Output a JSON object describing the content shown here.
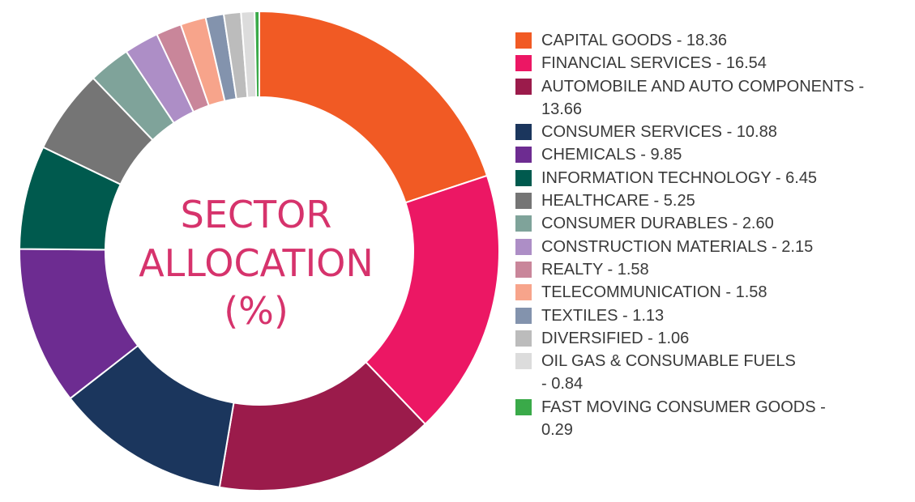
{
  "chart_data": {
    "type": "pie",
    "variant": "donut",
    "title": [
      "SECTOR",
      "ALLOCATION",
      "(%)"
    ],
    "legend_position": "right",
    "series": [
      {
        "name": "CAPITAL GOODS",
        "value": 18.36,
        "value_text": "18.36",
        "color": "#f15a24"
      },
      {
        "name": "FINANCIAL SERVICES",
        "value": 16.54,
        "value_text": "16.54",
        "color": "#ec1764"
      },
      {
        "name": "AUTOMOBILE AND AUTO COMPONENTS",
        "value": 13.66,
        "value_text": "13.66",
        "color": "#9b1b4b"
      },
      {
        "name": "CONSUMER SERVICES",
        "value": 10.88,
        "value_text": "10.88",
        "color": "#1b365d"
      },
      {
        "name": "CHEMICALS",
        "value": 9.85,
        "value_text": "9.85",
        "color": "#6d2c91"
      },
      {
        "name": "INFORMATION TECHNOLOGY",
        "value": 6.45,
        "value_text": "6.45",
        "color": "#005a4e"
      },
      {
        "name": "HEALTHCARE",
        "value": 5.25,
        "value_text": "5.25",
        "color": "#757575"
      },
      {
        "name": "CONSUMER DURABLES",
        "value": 2.6,
        "value_text": "2.60",
        "color": "#7fa39a"
      },
      {
        "name": "CONSTRUCTION MATERIALS",
        "value": 2.15,
        "value_text": "2.15",
        "color": "#ad8ec6"
      },
      {
        "name": "REALTY",
        "value": 1.58,
        "value_text": "1.58",
        "color": "#c9869a"
      },
      {
        "name": "TELECOMMUNICATION",
        "value": 1.58,
        "value_text": "1.58",
        "color": "#f7a48b"
      },
      {
        "name": "TEXTILES",
        "value": 1.13,
        "value_text": "1.13",
        "color": "#8393ad"
      },
      {
        "name": "DIVERSIFIED",
        "value": 1.06,
        "value_text": "1.06",
        "color": "#bcbcbc"
      },
      {
        "name": "OIL GAS & CONSUMABLE FUELS",
        "value": 0.84,
        "value_text": "0.84",
        "color": "#dcdcdc"
      },
      {
        "name": "FAST MOVING CONSUMER GOODS",
        "value": 0.29,
        "value_text": "0.29",
        "color": "#3aaa49"
      }
    ],
    "legend_lines": [
      [
        "CAPITAL GOODS - 18.36"
      ],
      [
        "FINANCIAL SERVICES - 16.54"
      ],
      [
        "AUTOMOBILE AND AUTO COMPONENTS -",
        "13.66"
      ],
      [
        "CONSUMER SERVICES - 10.88"
      ],
      [
        "CHEMICALS - 9.85"
      ],
      [
        "INFORMATION TECHNOLOGY - 6.45"
      ],
      [
        "HEALTHCARE - 5.25"
      ],
      [
        "CONSUMER DURABLES - 2.60"
      ],
      [
        "CONSTRUCTION MATERIALS - 2.15"
      ],
      [
        "REALTY - 1.58"
      ],
      [
        "TELECOMMUNICATION - 1.58"
      ],
      [
        "TEXTILES - 1.13"
      ],
      [
        "DIVERSIFIED - 1.06"
      ],
      [
        "OIL GAS & CONSUMABLE FUELS",
        "- 0.84"
      ],
      [
        "FAST MOVING CONSUMER GOODS -",
        "0.29"
      ]
    ]
  }
}
